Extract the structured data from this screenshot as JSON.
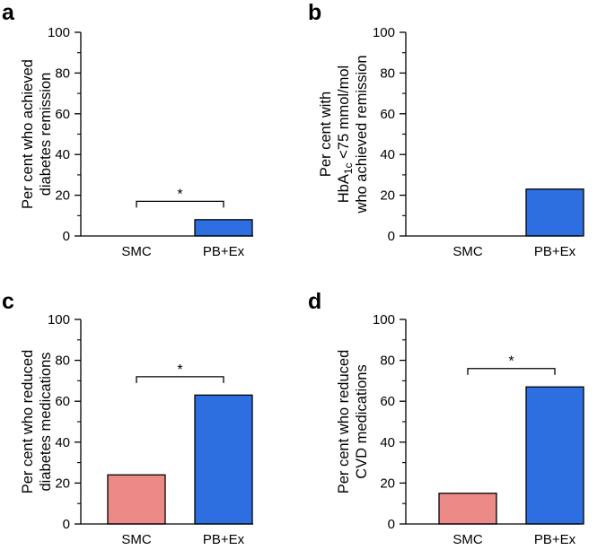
{
  "colors": {
    "smc": "#EB8A87",
    "pbex": "#2D6FE0",
    "axis": "#000000"
  },
  "chart_data": [
    {
      "panel": "a",
      "type": "bar",
      "ylabel": [
        "Per cent who achieved",
        "diabetes remission"
      ],
      "categories": [
        "SMC",
        "PB+Ex"
      ],
      "values": [
        0,
        8
      ],
      "ylim": [
        0,
        100
      ],
      "yticks": [
        0,
        20,
        40,
        60,
        80,
        100
      ],
      "significance": {
        "label": "*",
        "between": [
          0,
          1
        ],
        "y": 17
      }
    },
    {
      "panel": "b",
      "type": "bar",
      "ylabel": [
        "Per cent with",
        "HbA",
        "1c",
        " <75 mmol/mol",
        "who achieved remission"
      ],
      "categories": [
        "SMC",
        "PB+Ex"
      ],
      "values": [
        0,
        23
      ],
      "ylim": [
        0,
        100
      ],
      "yticks": [
        0,
        20,
        40,
        60,
        80,
        100
      ]
    },
    {
      "panel": "c",
      "type": "bar",
      "ylabel": [
        "Per cent who reduced",
        "diabetes medications"
      ],
      "categories": [
        "SMC",
        "PB+Ex"
      ],
      "values": [
        24,
        63
      ],
      "ylim": [
        0,
        100
      ],
      "yticks": [
        0,
        20,
        40,
        60,
        80,
        100
      ],
      "significance": {
        "label": "*",
        "between": [
          0,
          1
        ],
        "y": 72
      }
    },
    {
      "panel": "d",
      "type": "bar",
      "ylabel": [
        "Per cent who reduced",
        "CVD medications"
      ],
      "categories": [
        "SMC",
        "PB+Ex"
      ],
      "values": [
        15,
        67
      ],
      "ylim": [
        0,
        100
      ],
      "yticks": [
        0,
        20,
        40,
        60,
        80,
        100
      ],
      "significance": {
        "label": "*",
        "between": [
          0,
          1
        ],
        "y": 76
      }
    }
  ]
}
